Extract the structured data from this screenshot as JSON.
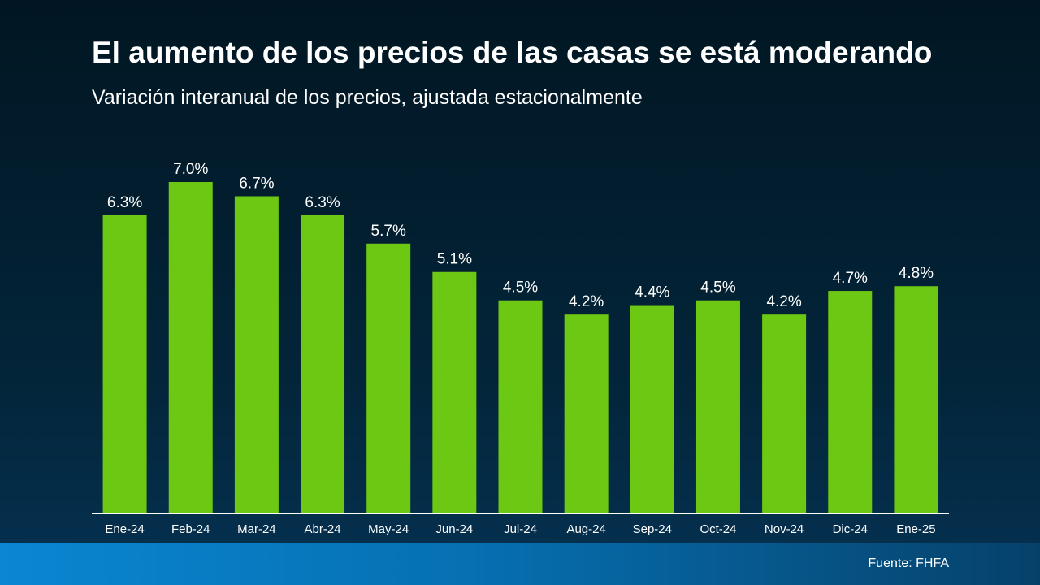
{
  "header": {
    "title": "El aumento de los precios de las casas se está moderando",
    "subtitle": "Variación interanual de los precios, ajustada estacionalmente"
  },
  "footer": {
    "source": "Fuente: FHFA"
  },
  "colors": {
    "bar": "#6cc812",
    "text": "#ffffff",
    "axis": "#ffffff"
  },
  "chart_data": {
    "type": "bar",
    "title": "El aumento de los precios de las casas se está moderando",
    "subtitle": "Variación interanual de los precios, ajustada estacionalmente",
    "categories": [
      "Ene-24",
      "Feb-24",
      "Mar-24",
      "Abr-24",
      "May-24",
      "Jun-24",
      "Jul-24",
      "Aug-24",
      "Sep-24",
      "Oct-24",
      "Nov-24",
      "Dic-24",
      "Ene-25"
    ],
    "values": [
      6.3,
      7.0,
      6.7,
      6.3,
      5.7,
      5.1,
      4.5,
      4.2,
      4.4,
      4.5,
      4.2,
      4.7,
      4.8
    ],
    "labels": [
      "6.3%",
      "7.0%",
      "6.7%",
      "6.3%",
      "5.7%",
      "5.1%",
      "4.5%",
      "4.2%",
      "4.4%",
      "4.5%",
      "4.2%",
      "4.7%",
      "4.8%"
    ],
    "value_suffix": "%",
    "ylim": [
      0,
      7.0
    ],
    "grid": false,
    "legend": "none"
  }
}
